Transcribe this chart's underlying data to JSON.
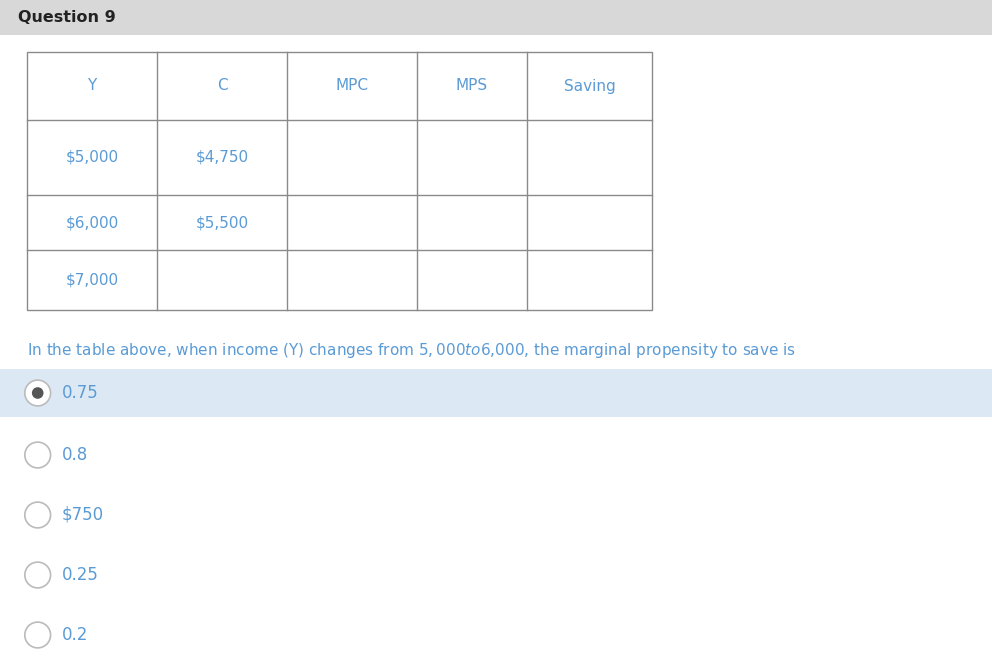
{
  "title": "Question 9",
  "title_bg": "#d8d8d8",
  "page_bg": "#ffffff",
  "table_headers": [
    "Y",
    "C",
    "MPC",
    "MPS",
    "Saving"
  ],
  "table_rows": [
    [
      "$5,000",
      "$4,750",
      "",
      "",
      ""
    ],
    [
      "$6,000",
      "$5,500",
      "",
      "",
      ""
    ],
    [
      "$7,000",
      "",
      "",
      "",
      ""
    ]
  ],
  "table_header_color": "#5b9bd5",
  "table_cell_color": "#5b9bd5",
  "table_border_color": "#8a8a8a",
  "question_text": "In the table above, when income (Y) changes from $5,000 to $6,000, the marginal propensity to save is",
  "question_text_color": "#5b9bd5",
  "options": [
    "0.75",
    "0.8",
    "$750",
    "0.25",
    "0.2"
  ],
  "option_text_color": "#5b9bd5",
  "selected_option": 0,
  "selected_bg": "#dce9f5",
  "radio_outer_color": "#bbbbbb",
  "radio_inner_color": "#555555",
  "title_text_color": "#222222"
}
